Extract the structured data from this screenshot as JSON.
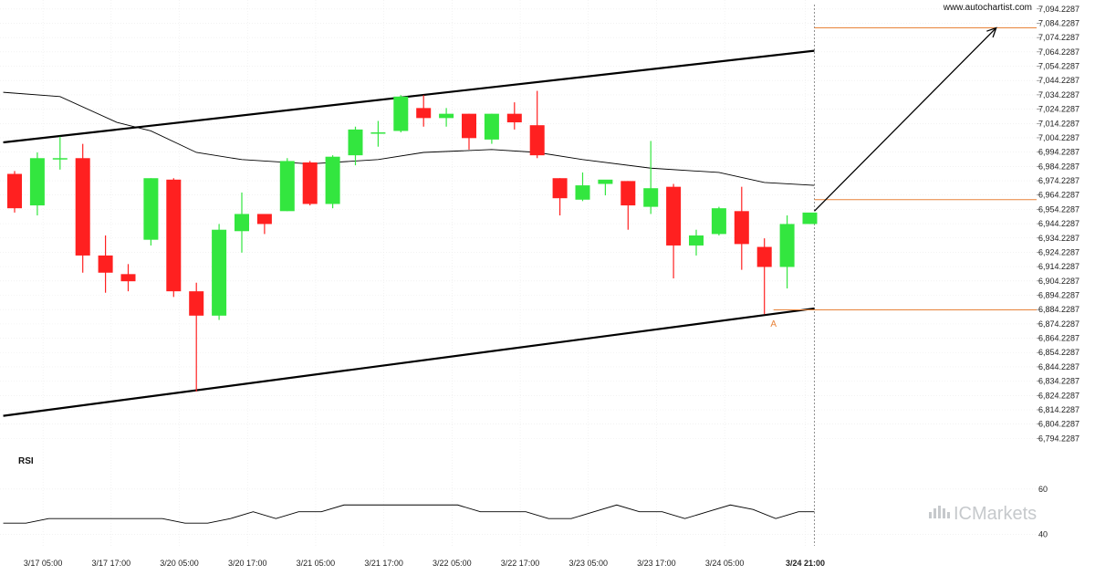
{
  "site": "www.autochartist.com",
  "brand": "ICMarkets",
  "rsi_label": "RSI",
  "point_label": "A",
  "colors": {
    "up": "#33e63f",
    "down": "#ff2020",
    "channel": "#000000",
    "moving_average": "#000000",
    "level_lines": "#e8833a",
    "projection_arrow": "#000000",
    "rsi_line": "#000000"
  },
  "chart_data": {
    "type": "candlestick",
    "y_axis_ticks": [
      "7,094.2287",
      "7,084.2287",
      "7,074.2287",
      "7,064.2287",
      "7,054.2287",
      "7,044.2287",
      "7,034.2287",
      "7,024.2287",
      "7,014.2287",
      "7,004.2287",
      "6,994.2287",
      "6,984.2287",
      "6,974.2287",
      "6,964.2287",
      "6,954.2287",
      "6,944.2287",
      "6,934.2287",
      "6,924.2287",
      "6,914.2287",
      "6,904.2287",
      "6,894.2287",
      "6,884.2287",
      "6,874.2287",
      "6,864.2287",
      "6,854.2287",
      "6,844.2287",
      "6,834.2287",
      "6,824.2287",
      "6,814.2287",
      "6,804.2287",
      "6,794.2287"
    ],
    "ylim": [
      6790,
      7096
    ],
    "x_ticks": [
      {
        "label": "3/17 05:00",
        "index": 1.25
      },
      {
        "label": "3/17 17:00",
        "index": 4.25
      },
      {
        "label": "3/20 05:00",
        "index": 7.25
      },
      {
        "label": "3/20 17:00",
        "index": 10.25
      },
      {
        "label": "3/21 05:00",
        "index": 13.25
      },
      {
        "label": "3/21 17:00",
        "index": 16.25
      },
      {
        "label": "3/22 05:00",
        "index": 19.25
      },
      {
        "label": "3/22 17:00",
        "index": 22.25
      },
      {
        "label": "3/23 05:00",
        "index": 25.25
      },
      {
        "label": "3/23 17:00",
        "index": 28.25
      },
      {
        "label": "3/24 05:00",
        "index": 31.25
      },
      {
        "label": "3/24 21:00",
        "index": 34.8
      }
    ],
    "candles": [
      {
        "o": 6979,
        "h": 6981,
        "l": 6952,
        "c": 6955
      },
      {
        "o": 6957,
        "h": 6994,
        "l": 6950,
        "c": 6990
      },
      {
        "o": 6990,
        "h": 7005,
        "l": 6982,
        "c": 6990
      },
      {
        "o": 6990,
        "h": 7000,
        "l": 6910,
        "c": 6922
      },
      {
        "o": 6922,
        "h": 6936,
        "l": 6896,
        "c": 6910
      },
      {
        "o": 6909,
        "h": 6916,
        "l": 6897,
        "c": 6904
      },
      {
        "o": 6933,
        "h": 6976,
        "l": 6929,
        "c": 6976
      },
      {
        "o": 6975,
        "h": 6976,
        "l": 6893,
        "c": 6897
      },
      {
        "o": 6897,
        "h": 6903,
        "l": 6827,
        "c": 6880
      },
      {
        "o": 6880,
        "h": 6944,
        "l": 6877,
        "c": 6940
      },
      {
        "o": 6939,
        "h": 6966,
        "l": 6924,
        "c": 6951
      },
      {
        "o": 6951,
        "h": 6949,
        "l": 6937,
        "c": 6944
      },
      {
        "o": 6953,
        "h": 6990,
        "l": 6953,
        "c": 6988
      },
      {
        "o": 6987,
        "h": 6988,
        "l": 6957,
        "c": 6958
      },
      {
        "o": 6958,
        "h": 6992,
        "l": 6955,
        "c": 6991
      },
      {
        "o": 6992,
        "h": 7012,
        "l": 6985,
        "c": 7010
      },
      {
        "o": 7008,
        "h": 7016,
        "l": 6998,
        "c": 7008
      },
      {
        "o": 7009,
        "h": 7034,
        "l": 7008,
        "c": 7033
      },
      {
        "o": 7025,
        "h": 7034,
        "l": 7012,
        "c": 7018
      },
      {
        "o": 7018,
        "h": 7025,
        "l": 7012,
        "c": 7021
      },
      {
        "o": 7021,
        "h": 7021,
        "l": 6996,
        "c": 7004
      },
      {
        "o": 7003,
        "h": 7021,
        "l": 7000,
        "c": 7021
      },
      {
        "o": 7021,
        "h": 7029,
        "l": 7010,
        "c": 7015
      },
      {
        "o": 7013,
        "h": 7037,
        "l": 6990,
        "c": 6992
      },
      {
        "o": 6976,
        "h": 6976,
        "l": 6950,
        "c": 6962
      },
      {
        "o": 6961,
        "h": 6980,
        "l": 6960,
        "c": 6971
      },
      {
        "o": 6972,
        "h": 6974,
        "l": 6964,
        "c": 6975
      },
      {
        "o": 6974,
        "h": 6974,
        "l": 6940,
        "c": 6957
      },
      {
        "o": 6956,
        "h": 7002,
        "l": 6951,
        "c": 6969
      },
      {
        "o": 6970,
        "h": 6972,
        "l": 6906,
        "c": 6929
      },
      {
        "o": 6929,
        "h": 6940,
        "l": 6922,
        "c": 6936
      },
      {
        "o": 6937,
        "h": 6956,
        "l": 6936,
        "c": 6955
      },
      {
        "o": 6953,
        "h": 6970,
        "l": 6912,
        "c": 6930
      },
      {
        "o": 6928,
        "h": 6934,
        "l": 6881,
        "c": 6914
      },
      {
        "o": 6914,
        "h": 6950,
        "l": 6899,
        "c": 6944
      },
      {
        "o": 6944,
        "h": 6951,
        "l": 6944,
        "c": 6952
      }
    ],
    "channel_upper": {
      "start": {
        "index": -0.5,
        "value": 7001
      },
      "end": {
        "index": 35.2,
        "value": 7065
      }
    },
    "channel_lower": {
      "start": {
        "index": -0.5,
        "value": 6810
      },
      "end": {
        "index": 35.2,
        "value": 6885
      }
    },
    "moving_average": [
      {
        "index": -0.5,
        "value": 7036
      },
      {
        "index": 2,
        "value": 7033
      },
      {
        "index": 4.5,
        "value": 7015
      },
      {
        "index": 6,
        "value": 7009
      },
      {
        "index": 8,
        "value": 6994
      },
      {
        "index": 10,
        "value": 6989
      },
      {
        "index": 13,
        "value": 6986
      },
      {
        "index": 16,
        "value": 6989
      },
      {
        "index": 18,
        "value": 6994
      },
      {
        "index": 21,
        "value": 6996
      },
      {
        "index": 23,
        "value": 6994
      },
      {
        "index": 25,
        "value": 6989
      },
      {
        "index": 28,
        "value": 6983
      },
      {
        "index": 31,
        "value": 6980
      },
      {
        "index": 33,
        "value": 6973
      },
      {
        "index": 35.2,
        "value": 6971
      }
    ],
    "levels": [
      {
        "value": 7081,
        "from_index": 35.2
      },
      {
        "value": 6961,
        "from_index": 35.2
      },
      {
        "value": 6884,
        "from_index": 33.4
      }
    ],
    "point_a": {
      "index": 33.4,
      "value": 6878
    },
    "projection": {
      "from": {
        "index": 35.2,
        "value": 6953
      },
      "to": {
        "index": 43.2,
        "value": 7081
      }
    },
    "forecast_start_index": 35.2,
    "rsi": {
      "ticks": [
        60,
        40
      ],
      "ylim": [
        35,
        70
      ],
      "values": [
        {
          "index": -0.5,
          "value": 45
        },
        {
          "index": 0.5,
          "value": 45
        },
        {
          "index": 1.5,
          "value": 47
        },
        {
          "index": 6.5,
          "value": 47
        },
        {
          "index": 7.5,
          "value": 45
        },
        {
          "index": 8.5,
          "value": 45
        },
        {
          "index": 9.5,
          "value": 47
        },
        {
          "index": 10.5,
          "value": 50
        },
        {
          "index": 11.5,
          "value": 47
        },
        {
          "index": 12.5,
          "value": 50
        },
        {
          "index": 13.5,
          "value": 50
        },
        {
          "index": 14.5,
          "value": 53
        },
        {
          "index": 19.5,
          "value": 53
        },
        {
          "index": 20.5,
          "value": 50
        },
        {
          "index": 22.5,
          "value": 50
        },
        {
          "index": 23.5,
          "value": 47
        },
        {
          "index": 24.5,
          "value": 47
        },
        {
          "index": 25.5,
          "value": 50
        },
        {
          "index": 26.5,
          "value": 53
        },
        {
          "index": 27.5,
          "value": 50
        },
        {
          "index": 28.5,
          "value": 50
        },
        {
          "index": 29.5,
          "value": 47
        },
        {
          "index": 30.5,
          "value": 50
        },
        {
          "index": 31.5,
          "value": 53
        },
        {
          "index": 32.5,
          "value": 51
        },
        {
          "index": 33.5,
          "value": 47
        },
        {
          "index": 34.5,
          "value": 50
        },
        {
          "index": 35.2,
          "value": 50
        }
      ]
    }
  }
}
